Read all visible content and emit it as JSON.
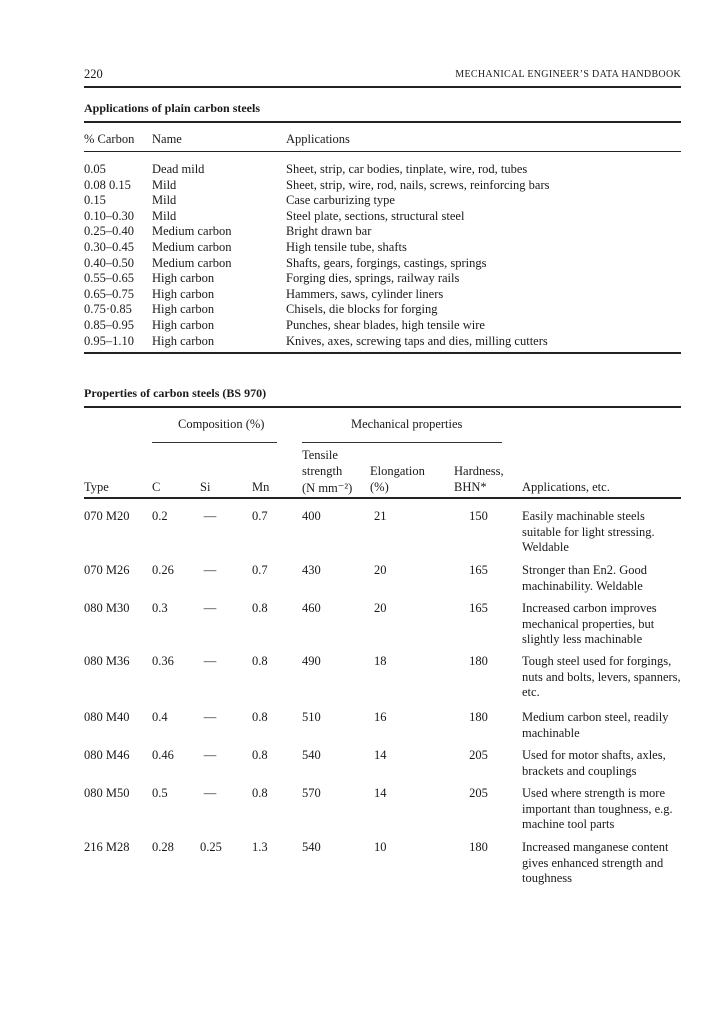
{
  "header": {
    "page_number": "220",
    "running_title": "MECHANICAL ENGINEER’S DATA HANDBOOK"
  },
  "table1": {
    "title": "Applications of plain carbon steels",
    "columns": [
      "% Carbon",
      "Name",
      "Applications"
    ],
    "rows": [
      [
        "0.05",
        "Dead mild",
        "Sheet, strip, car bodies, tinplate, wire, rod, tubes"
      ],
      [
        "0.08 0.15",
        "Mild",
        "Sheet, strip, wire, rod, nails, screws, reinforcing bars"
      ],
      [
        "0.15",
        "Mild",
        "Case carburizing type"
      ],
      [
        "0.10–0.30",
        "Mild",
        "Steel plate, sections, structural steel"
      ],
      [
        "0.25–0.40",
        "Medium carbon",
        "Bright drawn bar"
      ],
      [
        "0.30–0.45",
        "Medium carbon",
        "High tensile tube, shafts"
      ],
      [
        "0.40–0.50",
        "Medium carbon",
        "Shafts, gears, forgings, castings, springs"
      ],
      [
        "0.55–0.65",
        "High carbon",
        "Forging dies, springs, railway rails"
      ],
      [
        "0.65–0.75",
        "High carbon",
        "Hammers, saws, cylinder liners"
      ],
      [
        "0.75·0.85",
        "High carbon",
        "Chisels, die blocks for forging"
      ],
      [
        "0.85–0.95",
        "High carbon",
        "Punches, shear blades, high tensile wire"
      ],
      [
        "0.95–1.10",
        "High carbon",
        "Knives, axes, screwing taps and dies, milling cutters"
      ]
    ]
  },
  "table2": {
    "title": "Properties of carbon steels (BS 970)",
    "group_composition": "Composition (%)",
    "group_mechanical": "Mechanical properties",
    "columns": {
      "type": "Type",
      "c": "C",
      "si": "Si",
      "mn": "Mn",
      "tensile": [
        "Tensile",
        "strength",
        "(N mm⁻²)"
      ],
      "elongation": [
        "Elongation",
        "(%)"
      ],
      "hardness": [
        "Hardness,",
        "BHN*"
      ],
      "applications": "Applications, etc."
    },
    "rows": [
      [
        "070 M20",
        "0.2",
        "—",
        "0.7",
        "400",
        "21",
        "150",
        "Easily machinable steels suitable for light stressing. Weldable"
      ],
      [
        "070 M26",
        "0.26",
        "—",
        "0.7",
        "430",
        "20",
        "165",
        "Stronger than En2. Good machinability. Weldable"
      ],
      [
        "080 M30",
        "0.3",
        "—",
        "0.8",
        "460",
        "20",
        "165",
        "Increased carbon improves mechanical properties, but slightly less machinable"
      ],
      [
        "080 M36",
        "0.36",
        "—",
        "0.8",
        "490",
        "18",
        "180",
        "Tough steel used for forgings, nuts and bolts, levers, spanners, etc."
      ],
      [
        "080 M40",
        "0.4",
        "—",
        "0.8",
        "510",
        "16",
        "180",
        "Medium carbon steel, readily machinable"
      ],
      [
        "080 M46",
        "0.46",
        "—",
        "0.8",
        "540",
        "14",
        "205",
        "Used for motor shafts, axles, brackets and couplings"
      ],
      [
        "080 M50",
        "0.5",
        "—",
        "0.8",
        "570",
        "14",
        "205",
        "Used where strength is more important than toughness, e.g. machine tool parts"
      ],
      [
        "216 M28",
        "0.28",
        "0.25",
        "1.3",
        "540",
        "10",
        "180",
        "Increased manganese content gives enhanced strength and toughness"
      ]
    ]
  }
}
